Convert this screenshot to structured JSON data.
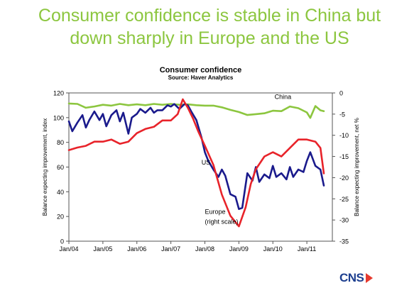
{
  "slide": {
    "title_line1": "Consumer confidence is stable in China but",
    "title_line2": "down sharply in Europe and the US"
  },
  "logo": {
    "text": "CNS"
  },
  "chart_data": {
    "type": "line",
    "title": "Consumer confidence",
    "subtitle": "Source: Haver Analytics",
    "ylabel": "Balance expecting improvement, index",
    "ylabel_right": "Balance expecting improvement, net %",
    "ylim": [
      0,
      120
    ],
    "yticks": [
      0,
      20,
      40,
      60,
      80,
      100,
      120
    ],
    "ylim_right": [
      -35,
      0
    ],
    "yticks_right": [
      -35,
      -30,
      -25,
      -20,
      -15,
      -10,
      -5,
      0
    ],
    "xlim": [
      2004.0,
      2011.75
    ],
    "xticks": [
      {
        "x": 2004,
        "label": "Jan/04"
      },
      {
        "x": 2005,
        "label": "Jan/05"
      },
      {
        "x": 2006,
        "label": "Jan/06"
      },
      {
        "x": 2007,
        "label": "Jan/07"
      },
      {
        "x": 2008,
        "label": "Jan/08"
      },
      {
        "x": 2009,
        "label": "Jan/09"
      },
      {
        "x": 2010,
        "label": "Jan/10"
      },
      {
        "x": 2011,
        "label": "Jan/11"
      }
    ],
    "annotations": [
      {
        "text": "China",
        "x": 2010.05,
        "y": 115
      },
      {
        "text": "US",
        "x": 2007.9,
        "y": 62
      },
      {
        "text": "Europe",
        "x": 2008.0,
        "y": 22
      },
      {
        "text": "(right scale)",
        "x": 2008.0,
        "y": 14
      }
    ],
    "colors": {
      "US": "#1a1a8c",
      "China": "#8cc63f",
      "Europe": "#e8232a"
    },
    "series": [
      {
        "name": "China",
        "axis": "right",
        "color": "#8cc63f",
        "x": [
          2004.0,
          2004.25,
          2004.5,
          2004.75,
          2005.0,
          2005.25,
          2005.5,
          2005.75,
          2006.0,
          2006.25,
          2006.5,
          2006.75,
          2007.0,
          2007.25,
          2007.5,
          2007.75,
          2008.0,
          2008.25,
          2008.5,
          2008.75,
          2009.0,
          2009.25,
          2009.5,
          2009.75,
          2010.0,
          2010.25,
          2010.5,
          2010.75,
          2011.0,
          2011.1,
          2011.25,
          2011.4,
          2011.5
        ],
        "y": [
          -2.5,
          -2.6,
          -3.5,
          -3.2,
          -2.8,
          -3.0,
          -2.6,
          -2.9,
          -2.7,
          -2.9,
          -2.6,
          -2.8,
          -2.6,
          -2.8,
          -2.7,
          -2.9,
          -3.0,
          -3.0,
          -3.4,
          -4.0,
          -4.5,
          -5.2,
          -5.0,
          -4.8,
          -4.2,
          -4.3,
          -3.2,
          -3.6,
          -4.6,
          -5.9,
          -3.1,
          -4.1,
          -4.3
        ]
      },
      {
        "name": "US",
        "axis": "left",
        "color": "#1a1a8c",
        "x": [
          2004.0,
          2004.1,
          2004.25,
          2004.4,
          2004.5,
          2004.6,
          2004.75,
          2004.9,
          2005.0,
          2005.1,
          2005.25,
          2005.4,
          2005.5,
          2005.6,
          2005.75,
          2005.85,
          2006.0,
          2006.1,
          2006.25,
          2006.4,
          2006.5,
          2006.6,
          2006.75,
          2006.9,
          2007.0,
          2007.1,
          2007.25,
          2007.4,
          2007.5,
          2007.6,
          2007.75,
          2007.9,
          2008.0,
          2008.1,
          2008.25,
          2008.4,
          2008.5,
          2008.6,
          2008.75,
          2008.9,
          2009.0,
          2009.1,
          2009.25,
          2009.4,
          2009.5,
          2009.6,
          2009.75,
          2009.9,
          2010.0,
          2010.1,
          2010.25,
          2010.4,
          2010.5,
          2010.6,
          2010.75,
          2010.9,
          2011.0,
          2011.1,
          2011.25,
          2011.4,
          2011.5
        ],
        "y": [
          97,
          89,
          96,
          102,
          92,
          98,
          105,
          98,
          103,
          93,
          102,
          106,
          97,
          104,
          87,
          100,
          103,
          107,
          104,
          108,
          104,
          106,
          106,
          110,
          109,
          111,
          107,
          111,
          110,
          105,
          98,
          84,
          72,
          65,
          58,
          52,
          58,
          53,
          38,
          36,
          26,
          27,
          55,
          49,
          60,
          48,
          54,
          51,
          61,
          52,
          55,
          50,
          60,
          52,
          58,
          56,
          65,
          72,
          61,
          58,
          45
        ]
      },
      {
        "name": "Europe",
        "axis": "right",
        "color": "#e8232a",
        "x": [
          2004.0,
          2004.25,
          2004.5,
          2004.75,
          2005.0,
          2005.25,
          2005.5,
          2005.75,
          2006.0,
          2006.25,
          2006.5,
          2006.75,
          2007.0,
          2007.2,
          2007.35,
          2007.5,
          2007.65,
          2007.8,
          2008.0,
          2008.25,
          2008.5,
          2008.75,
          2009.0,
          2009.2,
          2009.35,
          2009.5,
          2009.75,
          2010.0,
          2010.25,
          2010.5,
          2010.75,
          2011.0,
          2011.25,
          2011.4,
          2011.5
        ],
        "y": [
          -13.5,
          -12.9,
          -12.5,
          -11.5,
          -11.5,
          -11.0,
          -12.0,
          -11.5,
          -9.5,
          -8.5,
          -8.0,
          -6.5,
          -6.5,
          -5.0,
          -1.5,
          -3.5,
          -6.0,
          -9.0,
          -12.5,
          -17.0,
          -24.0,
          -29.0,
          -31.5,
          -27.0,
          -21.5,
          -18.0,
          -15.0,
          -14.0,
          -15.0,
          -13.0,
          -11.0,
          -11.0,
          -11.5,
          -13.0,
          -19.0
        ]
      }
    ]
  }
}
